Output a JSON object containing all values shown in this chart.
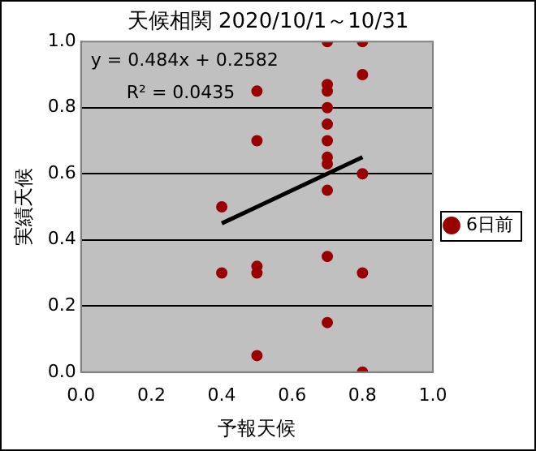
{
  "chart_data": {
    "type": "scatter",
    "title": "天候相関 2020/10/1～10/31",
    "xlabel": "予報天候",
    "ylabel": "実績天候",
    "xlim": [
      0,
      1
    ],
    "xticks": [
      {
        "value": 0,
        "label": "0.0"
      },
      {
        "value": 0.2,
        "label": "0.2"
      },
      {
        "value": 0.4,
        "label": "0.4"
      },
      {
        "value": 0.6,
        "label": "0.6"
      },
      {
        "value": 0.8,
        "label": "0.8"
      },
      {
        "value": 1,
        "label": "1.0"
      }
    ],
    "ylim": [
      0,
      1
    ],
    "yticks": [
      {
        "value": 0,
        "label": "0.0"
      },
      {
        "value": 0.2,
        "label": "0.2"
      },
      {
        "value": 0.4,
        "label": "0.4"
      },
      {
        "value": 0.6,
        "label": "0.6"
      },
      {
        "value": 0.8,
        "label": "0.8"
      },
      {
        "value": 1,
        "label": "1.0"
      }
    ],
    "grid": "y",
    "legend": "right",
    "marker": "circle",
    "series": [
      {
        "name": "6日前",
        "color": "#990000",
        "x": [
          0.4,
          0.4,
          0.5,
          0.5,
          0.5,
          0.5,
          0.5,
          0.7,
          0.7,
          0.7,
          0.7,
          0.7,
          0.7,
          0.7,
          0.7,
          0.7,
          0.7,
          0.7,
          0.8,
          0.8,
          0.8,
          0.8,
          0.8
        ],
        "values": [
          0.5,
          0.3,
          0.85,
          0.7,
          0.32,
          0.3,
          0.05,
          1.0,
          0.87,
          0.85,
          0.8,
          0.75,
          0.7,
          0.65,
          0.63,
          0.55,
          0.35,
          0.15,
          1.0,
          0.9,
          0.6,
          0.3,
          0.0
        ]
      },
      {
        "type": "line",
        "marker": "none",
        "color": "#000000",
        "x": [
          0.4,
          0.8
        ],
        "values": [
          0.45,
          0.65
        ]
      }
    ],
    "annotations": [
      "y = 0.484x + 0.2582",
      "R² = 0.0435"
    ]
  }
}
